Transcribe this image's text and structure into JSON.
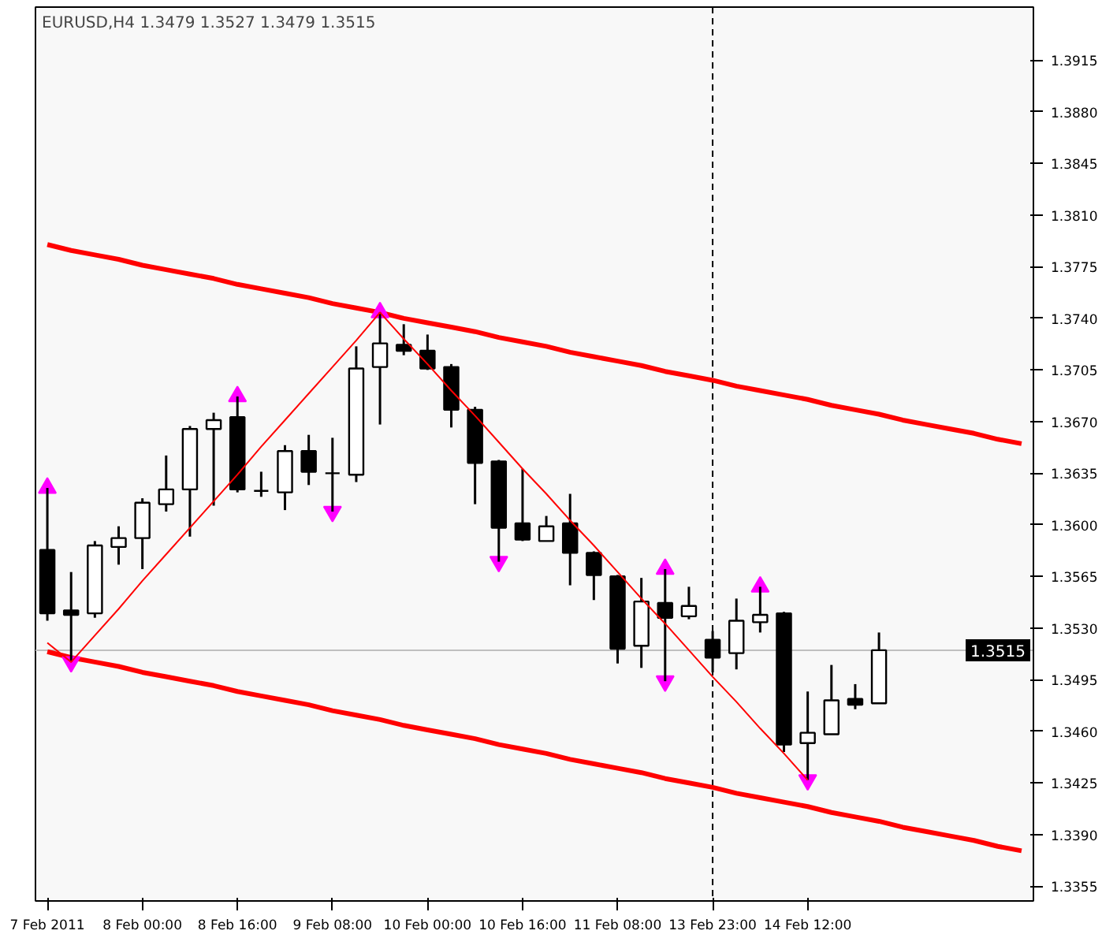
{
  "chart_data": {
    "type": "candlestick",
    "title": "EURUSD,H4  1.3479 1.3527 1.3479 1.3515",
    "categories": [
      "7 Feb 2011",
      null,
      null,
      null,
      "8 Feb 00:00",
      null,
      null,
      null,
      "8 Feb 16:00",
      null,
      null,
      null,
      "9 Feb 08:00",
      null,
      null,
      null,
      "10 Feb 00:00",
      null,
      null,
      null,
      "10 Feb 16:00",
      null,
      null,
      null,
      "11 Feb 08:00",
      null,
      null,
      null,
      "13 Feb 23:00",
      null,
      null,
      null,
      "14 Feb 12:00",
      null,
      null,
      null,
      null,
      null,
      null,
      null,
      null,
      null
    ],
    "ohlc": [
      [
        1.3583,
        1.3625,
        1.3535,
        1.354
      ],
      [
        1.3542,
        1.3568,
        1.3507,
        1.3539
      ],
      [
        1.354,
        1.3589,
        1.3537,
        1.3586
      ],
      [
        1.3585,
        1.3599,
        1.3573,
        1.3591
      ],
      [
        1.3591,
        1.3618,
        1.357,
        1.3615
      ],
      [
        1.3614,
        1.3647,
        1.3609,
        1.3624
      ],
      [
        1.3624,
        1.3667,
        1.3592,
        1.3665
      ],
      [
        1.3665,
        1.3676,
        1.3613,
        1.3671
      ],
      [
        1.3673,
        1.3687,
        1.3622,
        1.3624
      ],
      [
        1.3623,
        1.3636,
        1.3619,
        1.3623
      ],
      [
        1.3622,
        1.3654,
        1.361,
        1.365
      ],
      [
        1.365,
        1.3661,
        1.3627,
        1.3636
      ],
      [
        1.3635,
        1.3659,
        1.3609,
        1.3635
      ],
      [
        1.3634,
        1.3721,
        1.3629,
        1.3706
      ],
      [
        1.3707,
        1.3744,
        1.3668,
        1.3723
      ],
      [
        1.3722,
        1.3736,
        1.3715,
        1.3718
      ],
      [
        1.3718,
        1.3729,
        1.3705,
        1.3706
      ],
      [
        1.3707,
        1.3709,
        1.3666,
        1.3678
      ],
      [
        1.3678,
        1.368,
        1.3614,
        1.3642
      ],
      [
        1.3643,
        1.3644,
        1.3575,
        1.3598
      ],
      [
        1.3601,
        1.3638,
        1.3589,
        1.359
      ],
      [
        1.3589,
        1.3606,
        1.3589,
        1.3599
      ],
      [
        1.3601,
        1.3621,
        1.3559,
        1.3581
      ],
      [
        1.3581,
        1.3582,
        1.3549,
        1.3566
      ],
      [
        1.3565,
        1.3566,
        1.3506,
        1.3516
      ],
      [
        1.3518,
        1.3564,
        1.3503,
        1.3548
      ],
      [
        1.3547,
        1.357,
        1.3494,
        1.3537
      ],
      [
        1.3538,
        1.3558,
        1.3536,
        1.3545
      ],
      [
        1.3522,
        1.3528,
        1.35,
        1.351
      ],
      [
        1.3513,
        1.355,
        1.3502,
        1.3535
      ],
      [
        1.3534,
        1.3558,
        1.3527,
        1.3539
      ],
      [
        1.354,
        1.3541,
        1.3446,
        1.3451
      ],
      [
        1.3452,
        1.3487,
        1.3427,
        1.3459
      ],
      [
        1.3458,
        1.3505,
        1.3458,
        1.3481
      ],
      [
        1.3482,
        1.3492,
        1.3475,
        1.3478
      ],
      [
        1.3479,
        1.3527,
        1.3479,
        1.3515
      ],
      null,
      null,
      null,
      null,
      null,
      null
    ],
    "ylim": [
      1.3345,
      1.3951
    ],
    "yticks": [
      {
        "value": 1.3355,
        "label": "1.3355"
      },
      {
        "value": 1.339,
        "label": "1.3390"
      },
      {
        "value": 1.3425,
        "label": "1.3425"
      },
      {
        "value": 1.346,
        "label": "1.3460"
      },
      {
        "value": 1.3495,
        "label": "1.3495"
      },
      {
        "value": 1.353,
        "label": "1.3530"
      },
      {
        "value": 1.3565,
        "label": "1.3565"
      },
      {
        "value": 1.36,
        "label": "1.3600"
      },
      {
        "value": 1.3635,
        "label": "1.3635"
      },
      {
        "value": 1.367,
        "label": "1.3670"
      },
      {
        "value": 1.3705,
        "label": "1.3705"
      },
      {
        "value": 1.374,
        "label": "1.3740"
      },
      {
        "value": 1.3775,
        "label": "1.3775"
      },
      {
        "value": 1.381,
        "label": "1.3810"
      },
      {
        "value": 1.3845,
        "label": "1.3845"
      },
      {
        "value": 1.388,
        "label": "1.3880"
      },
      {
        "value": 1.3915,
        "label": "1.3915"
      }
    ],
    "series": [
      {
        "type": "line",
        "color": "#ff0000",
        "values": [
          1.379,
          1.3786,
          1.3783,
          1.378,
          1.3776,
          1.3773,
          1.377,
          1.3767,
          1.3763,
          1.376,
          1.3757,
          1.3754,
          1.375,
          1.3747,
          1.3744,
          1.374,
          1.3737,
          1.3734,
          1.3731,
          1.3727,
          1.3724,
          1.3721,
          1.3717,
          1.3714,
          1.3711,
          1.3708,
          1.3704,
          1.3701,
          1.3698,
          1.3694,
          1.3691,
          1.3688,
          1.3685,
          1.3681,
          1.3678,
          1.3675,
          1.3671,
          1.3668,
          1.3665,
          1.3662,
          1.3658,
          1.3655
        ]
      },
      {
        "type": "line",
        "color": "#ff0000",
        "values": [
          1.3514,
          1.351,
          1.3507,
          1.3504,
          1.35,
          1.3497,
          1.3494,
          1.3491,
          1.3487,
          1.3484,
          1.3481,
          1.3478,
          1.3474,
          1.3471,
          1.3468,
          1.3464,
          1.3461,
          1.3458,
          1.3455,
          1.3451,
          1.3448,
          1.3445,
          1.3441,
          1.3438,
          1.3435,
          1.3432,
          1.3428,
          1.3425,
          1.3422,
          1.3418,
          1.3415,
          1.3412,
          1.3409,
          1.3405,
          1.3402,
          1.3399,
          1.3395,
          1.3392,
          1.3389,
          1.3386,
          1.3382,
          1.3379
        ]
      },
      {
        "type": "line",
        "color": "#ff0000",
        "values": [
          1.352,
          1.3507,
          1.3525,
          1.3543,
          1.3562,
          1.358,
          1.3598,
          1.3616,
          1.3634,
          1.3653,
          1.3671,
          1.3689,
          1.3707,
          1.3725,
          1.3744,
          1.3726,
          1.3709,
          1.3691,
          1.3674,
          1.3656,
          1.3638,
          1.3621,
          1.3603,
          1.3586,
          1.3568,
          1.355,
          1.3533,
          1.3515,
          1.3497,
          1.348,
          1.3462,
          1.3445,
          1.3427,
          null,
          null,
          null,
          null,
          null,
          null,
          null,
          null,
          null
        ]
      },
      {
        "type": "scatter",
        "marker": "triangle",
        "color": "#ff00ff",
        "values": [
          1.3625,
          null,
          null,
          null,
          null,
          null,
          null,
          null,
          1.3687,
          null,
          null,
          null,
          null,
          null,
          1.3744,
          null,
          null,
          null,
          null,
          null,
          null,
          null,
          null,
          null,
          null,
          null,
          1.357,
          null,
          null,
          null,
          1.3558,
          null,
          null,
          null,
          null,
          null,
          null,
          null,
          null,
          null,
          null,
          null
        ]
      },
      {
        "type": "scatter",
        "marker": "triangle",
        "color": "#ff00ff",
        "values": [
          null,
          1.3507,
          null,
          null,
          null,
          null,
          null,
          null,
          null,
          null,
          null,
          null,
          1.3609,
          null,
          null,
          null,
          null,
          null,
          null,
          1.3575,
          null,
          null,
          null,
          null,
          null,
          null,
          1.3494,
          null,
          null,
          null,
          null,
          null,
          1.3427,
          null,
          null,
          null,
          null,
          null,
          null,
          null,
          null,
          null
        ]
      }
    ],
    "ref_lines": [
      {
        "axis": "y",
        "value": 1.3515,
        "label": "1.3515",
        "color": "#c0c0c0"
      },
      {
        "axis": "x",
        "value": "13 Feb 23:00",
        "color": "#000000",
        "line_style": "dashed"
      }
    ],
    "grid": false
  }
}
